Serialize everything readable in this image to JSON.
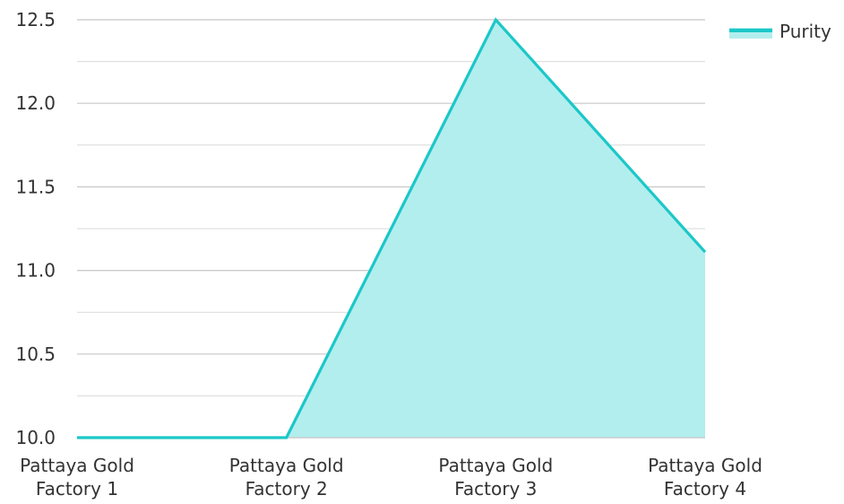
{
  "chart_data": {
    "type": "area",
    "categories": [
      [
        "Pattaya Gold",
        "Factory 1"
      ],
      [
        "Pattaya Gold",
        "Factory 2"
      ],
      [
        "Pattaya Gold",
        "Factory 3"
      ],
      [
        "Pattaya Gold",
        "Factory 4"
      ]
    ],
    "series": [
      {
        "name": "Purity",
        "values": [
          10.0,
          10.0,
          12.5,
          11.11
        ]
      }
    ],
    "ylim": [
      10.0,
      12.5
    ],
    "yticks": [
      "10.0",
      "10.5",
      "11.0",
      "11.5",
      "12.0",
      "12.5"
    ],
    "grid": true,
    "legend_position": "top-right",
    "colors": {
      "line": "#1CC7C8",
      "fill": "#B2EEEE",
      "grid": "#D9D9D9",
      "axis": "#C8C8C8"
    }
  }
}
